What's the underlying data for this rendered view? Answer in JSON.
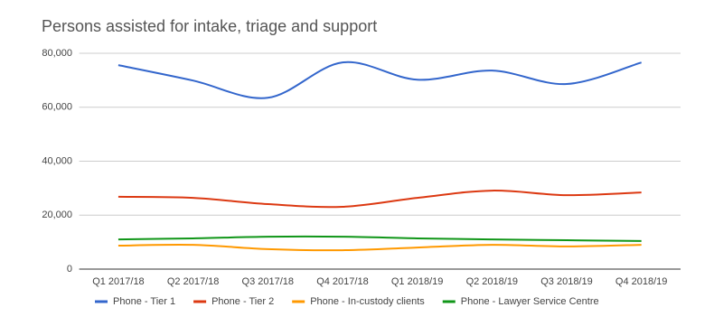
{
  "chart_data": {
    "type": "line",
    "title": "Persons assisted for intake, triage and support",
    "categories": [
      "Q1 2017/18",
      "Q2 2017/18",
      "Q3 2017/18",
      "Q4 2017/18",
      "Q1 2018/19",
      "Q2 2018/19",
      "Q3 2018/19",
      "Q4 2018/19"
    ],
    "series": [
      {
        "name": "Phone - Tier 1",
        "color": "#3366cc",
        "values": [
          75600,
          69900,
          63500,
          76600,
          70200,
          73600,
          68600,
          76600
        ]
      },
      {
        "name": "Phone - Tier 2",
        "color": "#dc3912",
        "values": [
          26800,
          26400,
          24100,
          23100,
          26400,
          29100,
          27400,
          28400
        ]
      },
      {
        "name": "Phone - In-custody clients",
        "color": "#ff9900",
        "values": [
          8700,
          9000,
          7400,
          7000,
          8000,
          9000,
          8400,
          9000
        ]
      },
      {
        "name": "Phone - Lawyer Service Centre",
        "color": "#109618",
        "values": [
          11000,
          11400,
          12000,
          12000,
          11400,
          11000,
          10700,
          10400
        ]
      }
    ],
    "ylim": [
      0,
      80000
    ],
    "yticks": [
      0,
      {
        "value": 20000,
        "label": "20,000"
      },
      {
        "value": 40000,
        "label": "40,000"
      },
      {
        "value": 60000,
        "label": "60,000"
      },
      {
        "value": 80000,
        "label": "80,000"
      }
    ],
    "grid": true,
    "legend": "bottom"
  }
}
